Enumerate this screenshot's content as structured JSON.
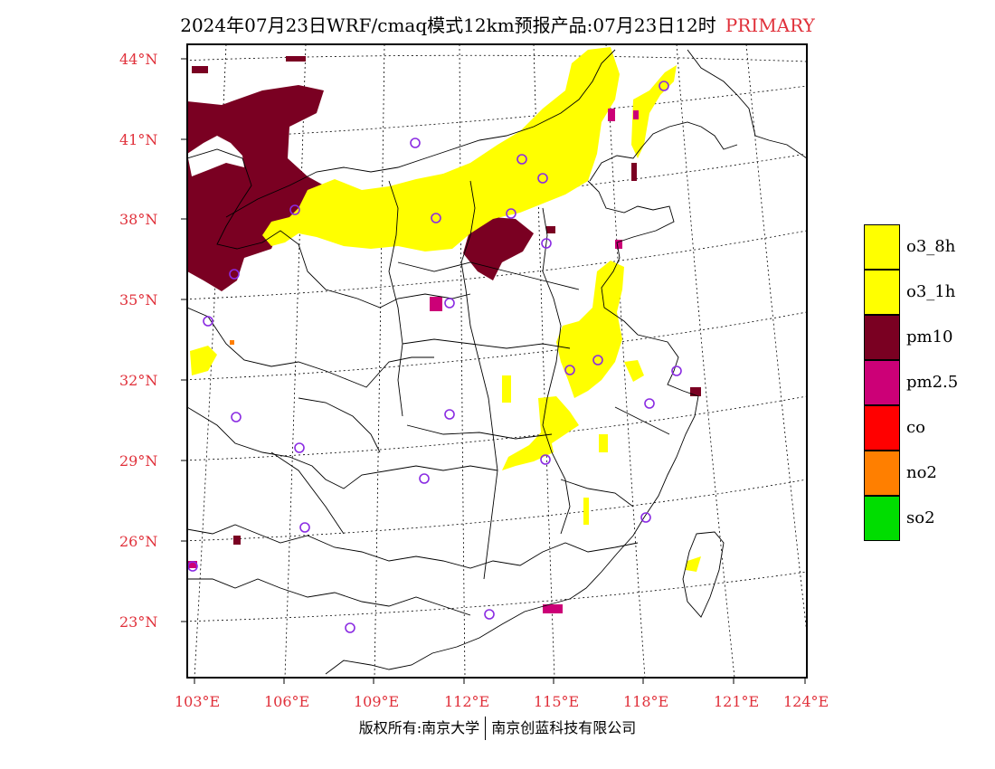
{
  "title": {
    "main": "2024年07月23日WRF/cmaq模式12km预报产品:07月23日12时",
    "tag": "PRIMARY"
  },
  "axes": {
    "lat_labels": [
      "44°N",
      "41°N",
      "38°N",
      "35°N",
      "32°N",
      "29°N",
      "26°N",
      "23°N"
    ],
    "lon_labels": [
      "103°E",
      "106°E",
      "109°E",
      "112°E",
      "115°E",
      "118°E",
      "121°E",
      "124°E"
    ]
  },
  "legend": [
    {
      "label": "o3_8h",
      "color": "#ffff00"
    },
    {
      "label": "o3_1h",
      "color": "#ffff00"
    },
    {
      "label": "pm10",
      "color": "#7a0022"
    },
    {
      "label": "pm2.5",
      "color": "#cc0077"
    },
    {
      "label": "co",
      "color": "#ff0000"
    },
    {
      "label": "no2",
      "color": "#ff7f00"
    },
    {
      "label": "so2",
      "color": "#00dd00"
    }
  ],
  "colors": {
    "title_accent": "#e0303a",
    "station_marker": "#8a2be2"
  },
  "footer": {
    "left": "版权所有:南京大学",
    "right": "南京创蓝科技有限公司"
  }
}
